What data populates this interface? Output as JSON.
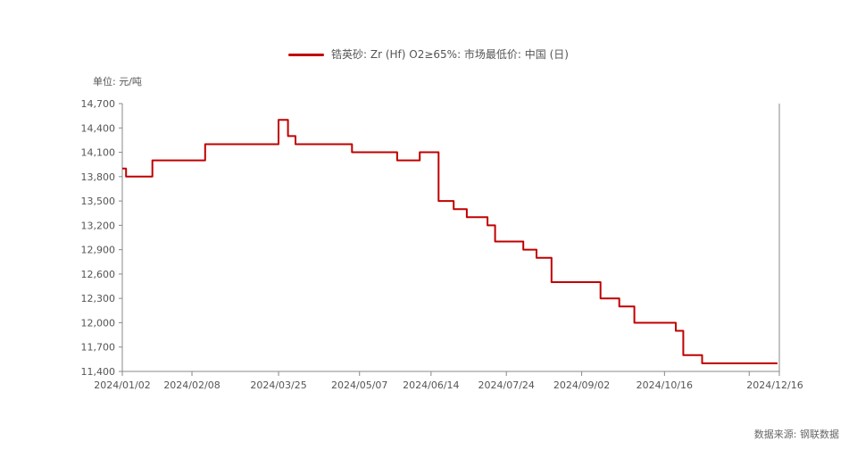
{
  "legend": {
    "label": "锆英砂: Zr (Hf) O2≥65%: 市场最低价: 中国 (日)"
  },
  "unit_label": "单位: 元/吨",
  "source_label": "数据来源: 钢联数据",
  "colors": {
    "series": "#c00000",
    "axis": "#888888"
  },
  "chart_data": {
    "type": "line",
    "step": true,
    "ylim": [
      11400,
      14700
    ],
    "yticks": [
      11400,
      11700,
      12000,
      12300,
      12600,
      12900,
      13200,
      13500,
      13800,
      14100,
      14400,
      14700
    ],
    "ytick_labels": [
      "11,400",
      "11,700",
      "12,000",
      "12,300",
      "12,600",
      "12,900",
      "13,200",
      "13,500",
      "13,800",
      "14,100",
      "14,400",
      "14,700"
    ],
    "xlim": [
      "2024-01-02",
      "2024-12-16"
    ],
    "xticks": [
      "2024-01-02",
      "2024-02-08",
      "2024-03-25",
      "2024-05-07",
      "2024-06-14",
      "2024-07-24",
      "2024-09-02",
      "2024-10-16",
      "2024-11-30",
      "2024-12-16"
    ],
    "xtick_labels": [
      "2024/01/02",
      "2024/02/08",
      "2024/03/25",
      "2024/05/07",
      "2024/06/14",
      "2024/07-24",
      "2024/09/02",
      "2024/10/16",
      "",
      "2024/12/16"
    ],
    "series": [
      {
        "name": "锆英砂: Zr (Hf) O2≥65%: 市场最低价: 中国 (日)",
        "points": [
          [
            "2024-01-02",
            13900
          ],
          [
            "2024-01-04",
            13800
          ],
          [
            "2024-01-18",
            14000
          ],
          [
            "2024-02-15",
            14200
          ],
          [
            "2024-03-25",
            14500
          ],
          [
            "2024-03-30",
            14300
          ],
          [
            "2024-04-03",
            14200
          ],
          [
            "2024-05-03",
            14100
          ],
          [
            "2024-05-27",
            14000
          ],
          [
            "2024-06-08",
            14100
          ],
          [
            "2024-06-18",
            13500
          ],
          [
            "2024-06-26",
            13400
          ],
          [
            "2024-07-03",
            13300
          ],
          [
            "2024-07-14",
            13200
          ],
          [
            "2024-07-18",
            13000
          ],
          [
            "2024-08-02",
            12900
          ],
          [
            "2024-08-09",
            12800
          ],
          [
            "2024-08-17",
            12500
          ],
          [
            "2024-09-12",
            12300
          ],
          [
            "2024-09-22",
            12200
          ],
          [
            "2024-09-30",
            12000
          ],
          [
            "2024-10-22",
            11900
          ],
          [
            "2024-10-26",
            11600
          ],
          [
            "2024-11-05",
            11500
          ],
          [
            "2024-12-15",
            11500
          ]
        ]
      }
    ]
  }
}
